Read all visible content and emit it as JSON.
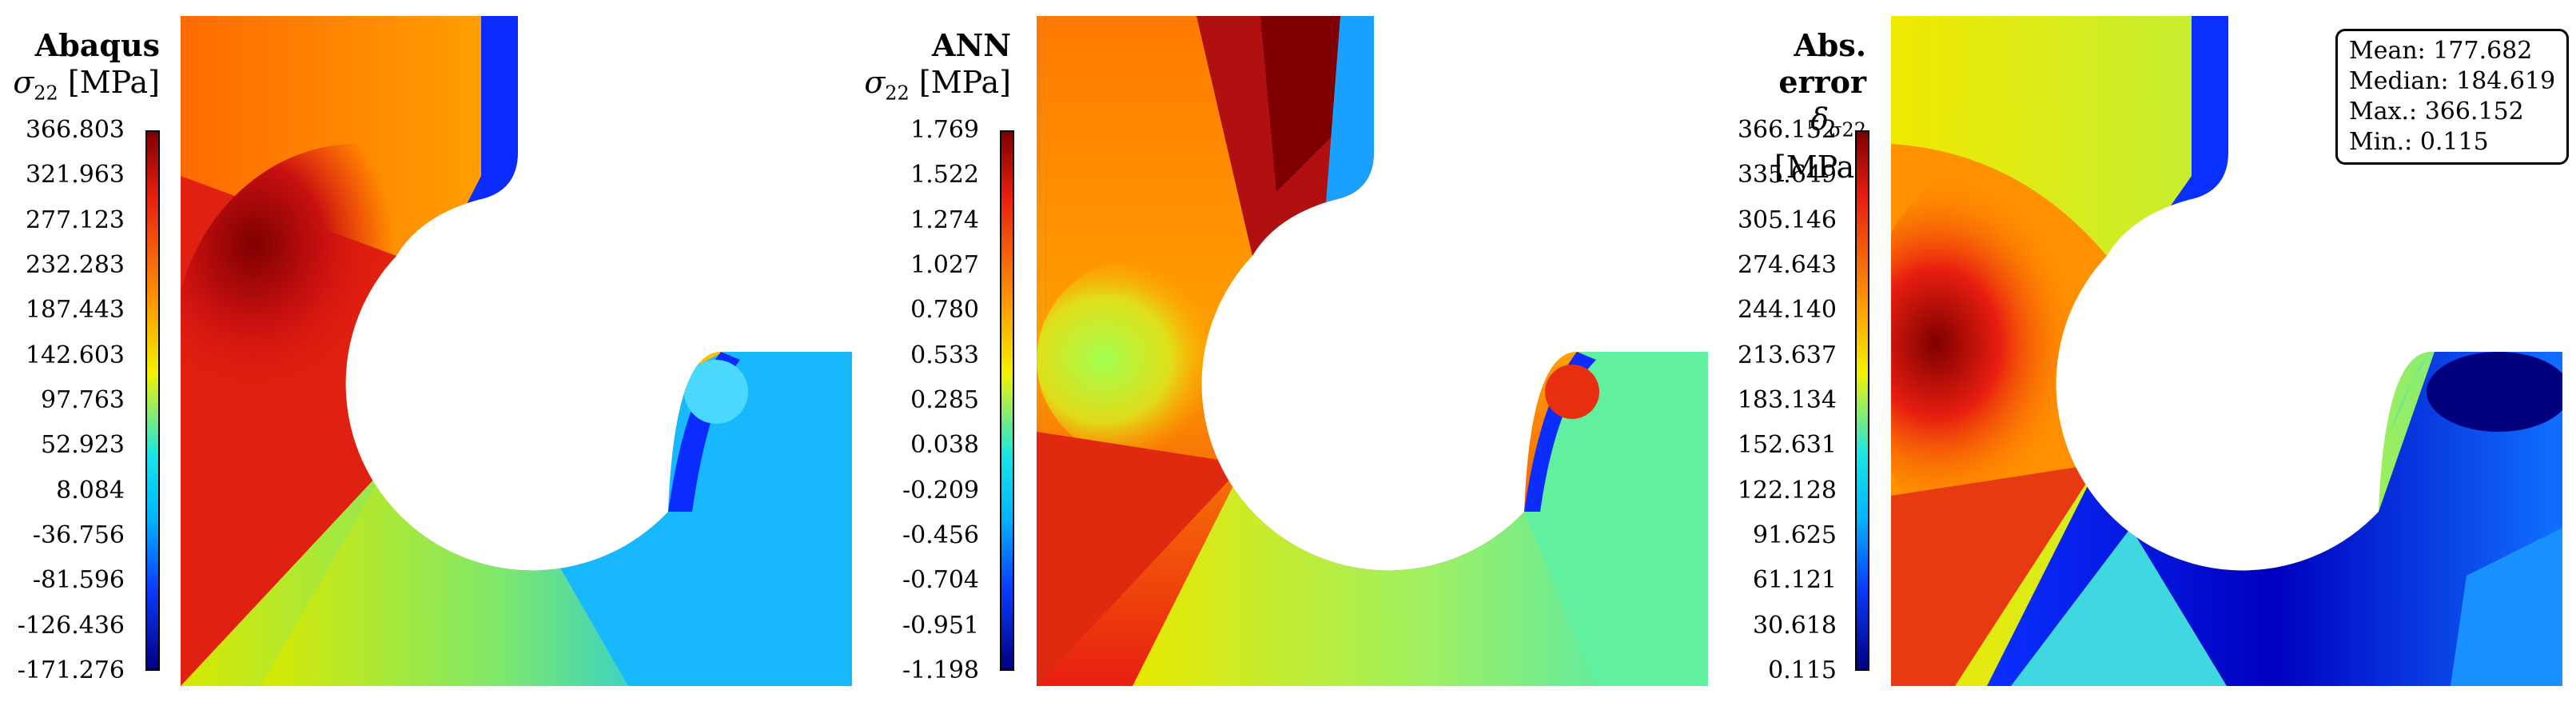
{
  "panels": [
    {
      "title": "Abaqus",
      "quantity": "σ",
      "subscript": "22",
      "unit": "[MPa]",
      "ticks": [
        "366.803",
        "321.963",
        "277.123",
        "232.283",
        "187.443",
        "142.603",
        "97.763",
        "52.923",
        "8.084",
        "-36.756",
        "-81.596",
        "-126.436",
        "-171.276"
      ]
    },
    {
      "title": "ANN",
      "quantity": "σ",
      "subscript": "22",
      "unit": "[MPa]",
      "ticks": [
        "1.769",
        "1.522",
        "1.274",
        "1.027",
        "0.780",
        "0.533",
        "0.285",
        "0.038",
        "-0.209",
        "-0.456",
        "-0.704",
        "-0.951",
        "-1.198"
      ]
    },
    {
      "title": "Abs. error",
      "quantity": "δ",
      "subscript": "σ22",
      "unit": "[MPa]",
      "ticks": [
        "366.152",
        "335.649",
        "305.146",
        "274.643",
        "244.140",
        "213.637",
        "183.134",
        "152.631",
        "122.128",
        "91.625",
        "61.121",
        "30.618",
        "0.115"
      ]
    }
  ],
  "stats": {
    "mean": "Mean: 177.682",
    "median": "Median: 184.619",
    "max": "Max.: 366.152",
    "min": "Min.: 0.115"
  },
  "colors": {
    "dark_red": "#7f0000",
    "red": "#e81e10",
    "orange": "#ff9a00",
    "yellow": "#f2f200",
    "cyan": "#19e6e6",
    "sky": "#00b4ff",
    "blue": "#0a3cff",
    "navy": "#00007f"
  }
}
